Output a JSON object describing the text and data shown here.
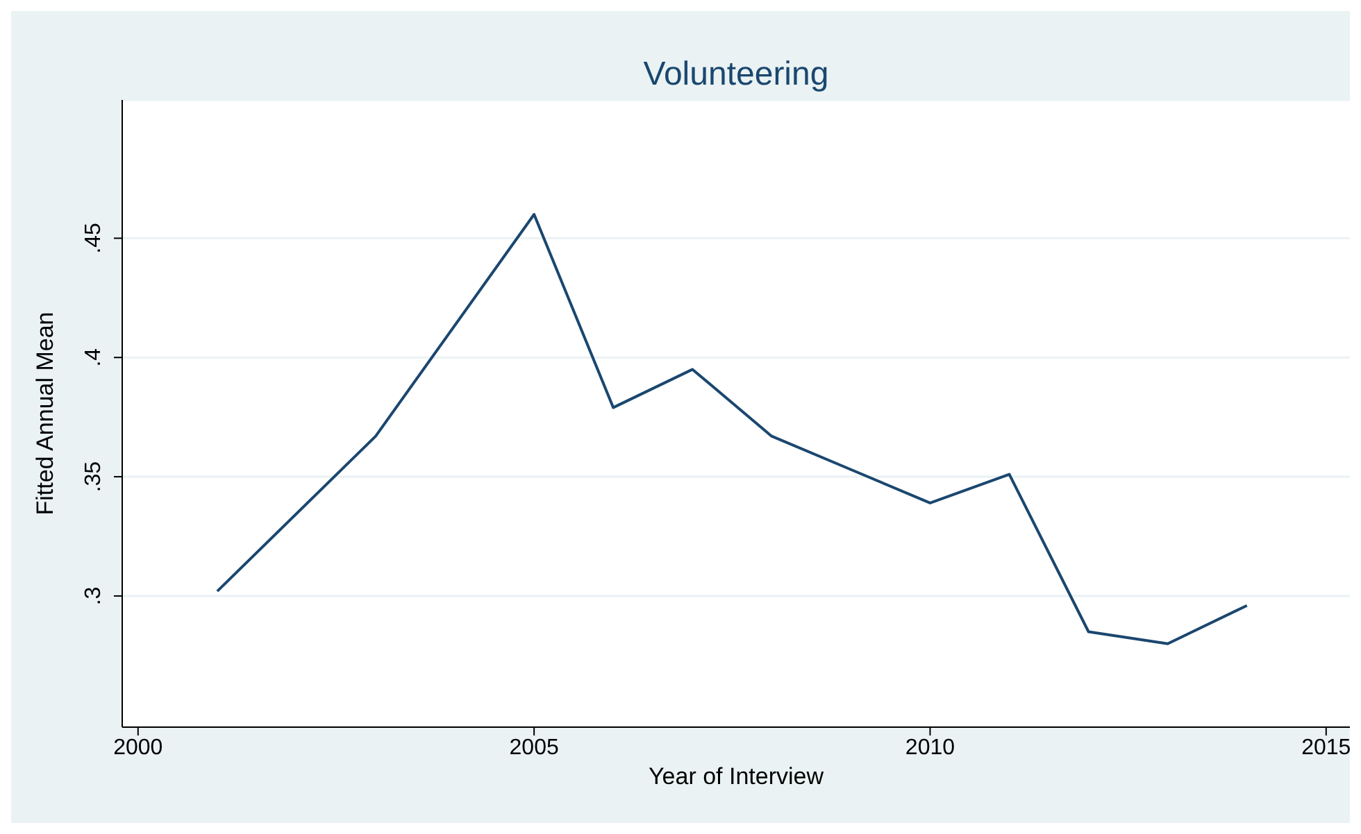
{
  "chart_data": {
    "type": "line",
    "title": "Volunteering",
    "xlabel": "Year of Interview",
    "ylabel": "Fitted Annual Mean",
    "x": [
      2001,
      2003,
      2005,
      2006,
      2007,
      2008,
      2009,
      2010,
      2011,
      2012,
      2013,
      2014
    ],
    "series": [
      {
        "color": "#1a476f",
        "values": [
          0.302,
          0.367,
          0.46,
          0.379,
          0.395,
          0.367,
          0.353,
          0.339,
          0.351,
          0.285,
          0.28,
          0.296
        ]
      }
    ],
    "xlim": [
      1999.8,
      2015.3
    ],
    "xticks": [
      2000,
      2005,
      2010,
      2015
    ],
    "ylim": [
      0.245,
      0.508
    ],
    "yticks": [
      {
        "value": 0.3,
        "label": ".3"
      },
      {
        "value": 0.35,
        "label": ".35"
      },
      {
        "value": 0.4,
        "label": ".4"
      },
      {
        "value": 0.45,
        "label": ".45"
      }
    ],
    "grid": "y",
    "marker": "none",
    "line_style": "solid",
    "legend": false
  }
}
